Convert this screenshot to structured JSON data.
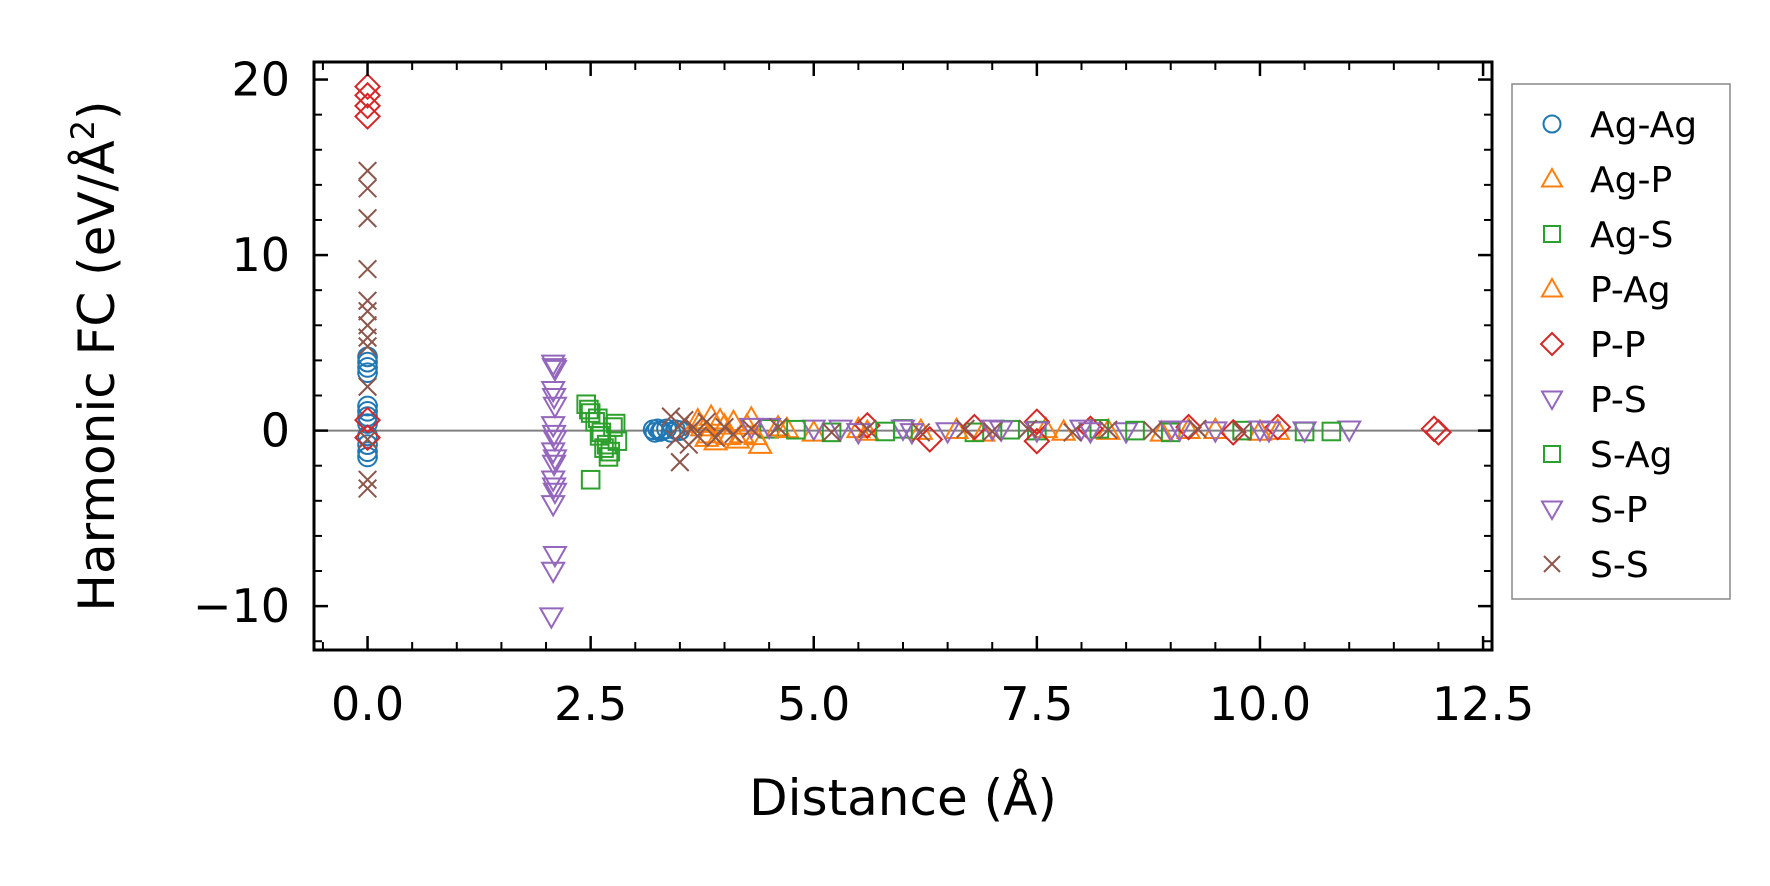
{
  "chart_data": {
    "type": "scatter",
    "title": "",
    "xlabel": "Distance (Å)",
    "ylabel_main": "Harmonic FC (eV/Å",
    "ylabel_sup": "2",
    "ylabel_end": ")",
    "xlim": [
      -0.6,
      12.6
    ],
    "ylim": [
      -12.5,
      21
    ],
    "xticks": [
      0.0,
      2.5,
      5.0,
      7.5,
      10.0,
      12.5
    ],
    "xtick_labels": [
      "0.0",
      "2.5",
      "5.0",
      "7.5",
      "10.0",
      "12.5"
    ],
    "yticks": [
      -10,
      0,
      10,
      20
    ],
    "ytick_labels": [
      "−10",
      "0",
      "10",
      "20"
    ],
    "zero_line": true,
    "grid": false,
    "legend_position": "outside-right",
    "series": [
      {
        "name": "Ag-Ag",
        "marker": "circle",
        "color": "#1f77b4",
        "filled": false,
        "points": [
          [
            0,
            4.2
          ],
          [
            0,
            3.9
          ],
          [
            0,
            3.6
          ],
          [
            0,
            3.3
          ],
          [
            0,
            1.4
          ],
          [
            0,
            1.1
          ],
          [
            0,
            0.8
          ],
          [
            0,
            0.4
          ],
          [
            0,
            -0.3
          ],
          [
            0,
            -0.8
          ],
          [
            0,
            -1.2
          ],
          [
            0,
            -1.5
          ],
          [
            3.2,
            0.05
          ],
          [
            3.22,
            -0.1
          ],
          [
            3.25,
            0.1
          ],
          [
            3.28,
            -0.05
          ],
          [
            3.3,
            0.0
          ],
          [
            3.35,
            0.1
          ],
          [
            3.4,
            -0.1
          ],
          [
            3.45,
            0.05
          ],
          [
            3.5,
            0.0
          ]
        ]
      },
      {
        "name": "Ag-P",
        "marker": "triangle-up",
        "color": "#ff7f0e",
        "filled": false,
        "points": [
          [
            3.7,
            0.6
          ],
          [
            3.75,
            0.2
          ],
          [
            3.8,
            -0.4
          ],
          [
            3.85,
            0.8
          ],
          [
            3.9,
            -0.6
          ],
          [
            4.0,
            0.3
          ],
          [
            4.05,
            -0.3
          ],
          [
            4.1,
            0.5
          ],
          [
            4.2,
            -0.2
          ],
          [
            4.3,
            0.7
          ],
          [
            4.4,
            -0.8
          ],
          [
            4.6,
            0.2
          ],
          [
            5.0,
            -0.1
          ],
          [
            5.5,
            0.1
          ],
          [
            6.2,
            0.0
          ],
          [
            6.9,
            -0.1
          ],
          [
            7.6,
            0.1
          ],
          [
            8.3,
            0.0
          ],
          [
            8.9,
            -0.1
          ],
          [
            9.5,
            0.05
          ],
          [
            10.0,
            -0.05
          ]
        ]
      },
      {
        "name": "Ag-S",
        "marker": "square",
        "color": "#2ca02c",
        "filled": false,
        "points": [
          [
            2.45,
            1.5
          ],
          [
            2.5,
            1.0
          ],
          [
            2.55,
            0.5
          ],
          [
            2.6,
            -0.3
          ],
          [
            2.65,
            -1.0
          ],
          [
            2.7,
            -1.5
          ],
          [
            2.5,
            -2.8
          ],
          [
            2.75,
            0.2
          ],
          [
            2.8,
            -0.6
          ],
          [
            4.5,
            0.1
          ],
          [
            5.2,
            -0.1
          ],
          [
            6.0,
            0.1
          ],
          [
            6.8,
            -0.1
          ],
          [
            7.5,
            0.0
          ],
          [
            8.2,
            0.1
          ],
          [
            9.0,
            -0.1
          ],
          [
            9.8,
            0.0
          ],
          [
            10.5,
            -0.05
          ]
        ]
      },
      {
        "name": "P-Ag",
        "marker": "triangle-up",
        "color": "#ff7f0e",
        "filled": false,
        "points": [
          [
            3.72,
            0.4
          ],
          [
            3.82,
            -0.2
          ],
          [
            3.95,
            0.6
          ],
          [
            4.15,
            -0.5
          ],
          [
            4.25,
            0.3
          ],
          [
            4.35,
            -0.3
          ],
          [
            4.7,
            0.1
          ],
          [
            5.6,
            -0.05
          ],
          [
            6.6,
            0.05
          ],
          [
            7.8,
            -0.05
          ],
          [
            9.2,
            0.05
          ],
          [
            10.2,
            0.0
          ]
        ]
      },
      {
        "name": "P-P",
        "marker": "diamond",
        "color": "#d62728",
        "filled": false,
        "points": [
          [
            0,
            19.6
          ],
          [
            0,
            19.1
          ],
          [
            0,
            18.5
          ],
          [
            0,
            17.9
          ],
          [
            0,
            0.6
          ],
          [
            0,
            -0.4
          ],
          [
            5.6,
            0.3
          ],
          [
            6.3,
            -0.5
          ],
          [
            6.8,
            0.2
          ],
          [
            7.5,
            0.5
          ],
          [
            7.5,
            -0.6
          ],
          [
            8.1,
            0.1
          ],
          [
            9.2,
            0.2
          ],
          [
            9.7,
            -0.1
          ],
          [
            10.2,
            0.2
          ],
          [
            11.95,
            0.1
          ],
          [
            12.0,
            -0.1
          ]
        ]
      },
      {
        "name": "P-S",
        "marker": "triangle-down",
        "color": "#9467bd",
        "filled": false,
        "points": [
          [
            2.08,
            3.8
          ],
          [
            2.1,
            3.5
          ],
          [
            2.08,
            2.3
          ],
          [
            2.1,
            1.4
          ],
          [
            2.08,
            0.3
          ],
          [
            2.1,
            -0.5
          ],
          [
            2.08,
            -1.2
          ],
          [
            2.1,
            -1.6
          ],
          [
            2.08,
            -2.8
          ],
          [
            2.1,
            -3.5
          ],
          [
            2.08,
            -4.2
          ],
          [
            2.1,
            -7.1
          ],
          [
            2.08,
            -8.0
          ],
          [
            2.06,
            -10.6
          ],
          [
            4.5,
            0.2
          ],
          [
            5.0,
            0.1
          ],
          [
            5.5,
            -0.1
          ],
          [
            6.0,
            0.1
          ],
          [
            6.5,
            -0.05
          ],
          [
            7.0,
            0.1
          ],
          [
            7.5,
            0.0
          ],
          [
            8.0,
            0.1
          ],
          [
            8.5,
            -0.05
          ],
          [
            9.0,
            0.05
          ],
          [
            9.5,
            0.0
          ],
          [
            10.0,
            0.05
          ],
          [
            10.5,
            0.0
          ],
          [
            11.0,
            0.05
          ]
        ]
      },
      {
        "name": "S-Ag",
        "marker": "square",
        "color": "#2ca02c",
        "filled": false,
        "points": [
          [
            2.48,
            1.2
          ],
          [
            2.58,
            0.7
          ],
          [
            2.62,
            -0.1
          ],
          [
            2.68,
            -0.8
          ],
          [
            2.72,
            -1.2
          ],
          [
            2.78,
            0.4
          ],
          [
            4.8,
            0.05
          ],
          [
            5.8,
            -0.05
          ],
          [
            7.2,
            0.05
          ],
          [
            8.6,
            0.0
          ],
          [
            10.8,
            -0.05
          ]
        ]
      },
      {
        "name": "S-P",
        "marker": "triangle-down",
        "color": "#9467bd",
        "filled": false,
        "points": [
          [
            2.09,
            3.6
          ],
          [
            2.09,
            1.9
          ],
          [
            2.09,
            -0.2
          ],
          [
            2.09,
            -1.9
          ],
          [
            2.09,
            -3.2
          ],
          [
            4.3,
            0.2
          ],
          [
            5.3,
            0.1
          ],
          [
            6.1,
            -0.1
          ],
          [
            7.1,
            0.05
          ],
          [
            8.1,
            -0.05
          ],
          [
            9.1,
            0.05
          ],
          [
            10.1,
            0.0
          ]
        ]
      },
      {
        "name": "S-S",
        "marker": "x",
        "color": "#8c564b",
        "filled": false,
        "points": [
          [
            0,
            14.8
          ],
          [
            0,
            13.8
          ],
          [
            0,
            12.1
          ],
          [
            0,
            9.2
          ],
          [
            0,
            7.4
          ],
          [
            0,
            6.8
          ],
          [
            0,
            6.0
          ],
          [
            0,
            5.3
          ],
          [
            0,
            4.8
          ],
          [
            0,
            2.5
          ],
          [
            0,
            -0.5
          ],
          [
            0,
            -2.8
          ],
          [
            0,
            -3.3
          ],
          [
            3.4,
            0.8
          ],
          [
            3.45,
            -0.5
          ],
          [
            3.5,
            0.3
          ],
          [
            3.5,
            -1.8
          ],
          [
            3.55,
            0.6
          ],
          [
            3.6,
            -0.8
          ],
          [
            3.65,
            0.2
          ],
          [
            3.7,
            -0.3
          ],
          [
            3.8,
            0.5
          ],
          [
            3.9,
            -0.4
          ],
          [
            4.0,
            0.2
          ],
          [
            4.1,
            -0.2
          ],
          [
            4.3,
            0.1
          ],
          [
            4.6,
            0.2
          ],
          [
            5.2,
            -0.1
          ],
          [
            5.6,
            0.1
          ],
          [
            6.2,
            -0.1
          ],
          [
            6.7,
            0.1
          ],
          [
            7.0,
            -0.05
          ],
          [
            7.4,
            0.1
          ],
          [
            7.9,
            -0.1
          ],
          [
            8.3,
            0.05
          ],
          [
            8.8,
            0.0
          ],
          [
            9.3,
            0.1
          ],
          [
            9.8,
            -0.05
          ]
        ]
      }
    ]
  }
}
